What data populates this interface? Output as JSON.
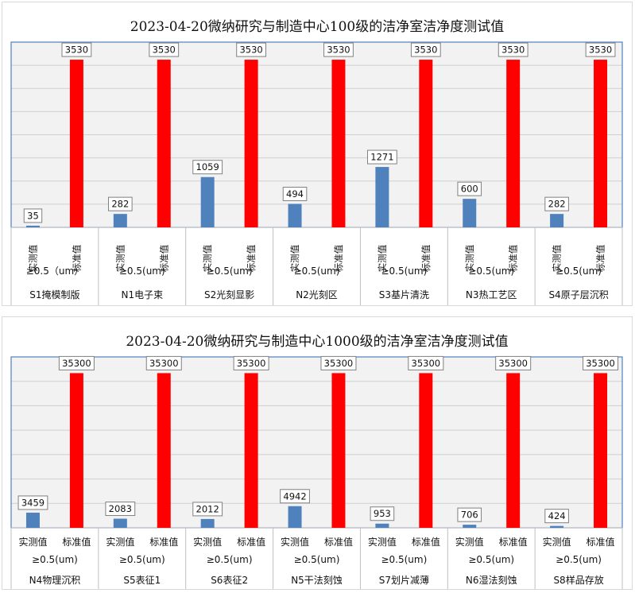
{
  "chart_data": [
    {
      "type": "bar",
      "title": "2023-04-20微纳研究与制造中心100级的洁净室洁净度测试值",
      "categories": [
        "S1掩模制版",
        "N1电子束",
        "S2光刻显影",
        "N2光刻区",
        "S3基片清洗",
        "N3热工艺区",
        "S4原子层沉积"
      ],
      "sub_labels": [
        "≥0.5（um）",
        "≥0.5(um)",
        "≥0.5(um)",
        "≥0.5(um)",
        "≥0.5(um)",
        "≥0.5(um)",
        "≥0.5(um)"
      ],
      "series": [
        {
          "name": "实测值",
          "values": [
            35,
            282,
            1059,
            494,
            1271,
            600,
            282
          ],
          "color": "#4f81bd"
        },
        {
          "name": "标准值",
          "values": [
            3530,
            3530,
            3530,
            3530,
            3530,
            3530,
            3530
          ],
          "color": "#ff0000"
        }
      ],
      "series_label_vertical": true,
      "ylim": [
        0,
        3900
      ],
      "grid": true,
      "data_labels": true,
      "plot_background": "#f2f2f2",
      "axis_color": "#4f81bd"
    },
    {
      "type": "bar",
      "title": "2023-04-20微纳研究与制造中心1000级的洁净室洁净度测试值",
      "categories": [
        "N4物理沉积",
        "S5表征1",
        "S6表征2",
        "N5干法刻蚀",
        "S7划片减薄",
        "N6湿法刻蚀",
        "S8样品存放"
      ],
      "sub_labels": [
        "≥0.5(um)",
        "≥0.5(um)",
        "≥0.5(um)",
        "≥0.5(um)",
        "≥0.5(um)",
        "≥0.5(um)",
        "≥0.5(um)"
      ],
      "series": [
        {
          "name": "实测值",
          "values": [
            3459,
            2083,
            2012,
            4942,
            953,
            706,
            424
          ],
          "color": "#4f81bd"
        },
        {
          "name": "标准值",
          "values": [
            35300,
            35300,
            35300,
            35300,
            35300,
            35300,
            35300
          ],
          "color": "#ff0000"
        }
      ],
      "series_label_vertical": false,
      "ylim": [
        0,
        39000
      ],
      "grid": true,
      "data_labels": true,
      "plot_background": "#f2f2f2",
      "axis_color": "#4f81bd"
    }
  ]
}
